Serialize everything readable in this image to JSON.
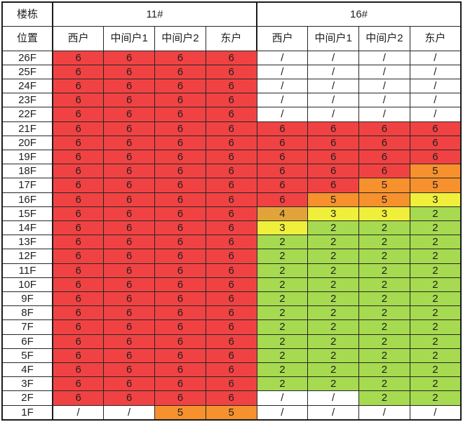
{
  "chart_data": {
    "type": "heatmap",
    "corner_labels": [
      "楼栋",
      "位置"
    ],
    "column_groups": [
      {
        "name": "11#",
        "columns": [
          "西户",
          "中间户1",
          "中间户2",
          "东户"
        ]
      },
      {
        "name": "16#",
        "columns": [
          "西户",
          "中间户1",
          "中间户2",
          "东户"
        ]
      }
    ],
    "floors": [
      "26F",
      "25F",
      "24F",
      "23F",
      "22F",
      "21F",
      "20F",
      "19F",
      "18F",
      "17F",
      "16F",
      "15F",
      "14F",
      "13F",
      "12F",
      "11F",
      "10F",
      "9F",
      "8F",
      "7F",
      "6F",
      "5F",
      "4F",
      "3F",
      "2F",
      "1F"
    ],
    "values_11": [
      [
        "6",
        "6",
        "6",
        "6"
      ],
      [
        "6",
        "6",
        "6",
        "6"
      ],
      [
        "6",
        "6",
        "6",
        "6"
      ],
      [
        "6",
        "6",
        "6",
        "6"
      ],
      [
        "6",
        "6",
        "6",
        "6"
      ],
      [
        "6",
        "6",
        "6",
        "6"
      ],
      [
        "6",
        "6",
        "6",
        "6"
      ],
      [
        "6",
        "6",
        "6",
        "6"
      ],
      [
        "6",
        "6",
        "6",
        "6"
      ],
      [
        "6",
        "6",
        "6",
        "6"
      ],
      [
        "6",
        "6",
        "6",
        "6"
      ],
      [
        "6",
        "6",
        "6",
        "6"
      ],
      [
        "6",
        "6",
        "6",
        "6"
      ],
      [
        "6",
        "6",
        "6",
        "6"
      ],
      [
        "6",
        "6",
        "6",
        "6"
      ],
      [
        "6",
        "6",
        "6",
        "6"
      ],
      [
        "6",
        "6",
        "6",
        "6"
      ],
      [
        "6",
        "6",
        "6",
        "6"
      ],
      [
        "6",
        "6",
        "6",
        "6"
      ],
      [
        "6",
        "6",
        "6",
        "6"
      ],
      [
        "6",
        "6",
        "6",
        "6"
      ],
      [
        "6",
        "6",
        "6",
        "6"
      ],
      [
        "6",
        "6",
        "6",
        "6"
      ],
      [
        "6",
        "6",
        "6",
        "6"
      ],
      [
        "6",
        "6",
        "6",
        "6"
      ],
      [
        "/",
        "/",
        "5",
        "5"
      ]
    ],
    "values_16": [
      [
        "/",
        "/",
        "/",
        "/"
      ],
      [
        "/",
        "/",
        "/",
        "/"
      ],
      [
        "/",
        "/",
        "/",
        "/"
      ],
      [
        "/",
        "/",
        "/",
        "/"
      ],
      [
        "/",
        "/",
        "/",
        "/"
      ],
      [
        "6",
        "6",
        "6",
        "6"
      ],
      [
        "6",
        "6",
        "6",
        "6"
      ],
      [
        "6",
        "6",
        "6",
        "6"
      ],
      [
        "6",
        "6",
        "6",
        "5"
      ],
      [
        "6",
        "6",
        "5",
        "5"
      ],
      [
        "6",
        "5",
        "5",
        "3"
      ],
      [
        "4",
        "3",
        "3",
        "2"
      ],
      [
        "3",
        "2",
        "2",
        "2"
      ],
      [
        "2",
        "2",
        "2",
        "2"
      ],
      [
        "2",
        "2",
        "2",
        "2"
      ],
      [
        "2",
        "2",
        "2",
        "2"
      ],
      [
        "2",
        "2",
        "2",
        "2"
      ],
      [
        "2",
        "2",
        "2",
        "2"
      ],
      [
        "2",
        "2",
        "2",
        "2"
      ],
      [
        "2",
        "2",
        "2",
        "2"
      ],
      [
        "2",
        "2",
        "2",
        "2"
      ],
      [
        "2",
        "2",
        "2",
        "2"
      ],
      [
        "2",
        "2",
        "2",
        "2"
      ],
      [
        "2",
        "2",
        "2",
        "2"
      ],
      [
        "/",
        "/",
        "2",
        "2"
      ],
      [
        "/",
        "/",
        "/",
        "/"
      ]
    ],
    "color_scale": {
      "6": "#F14243",
      "5": "#F6912E",
      "4": "#E2A33B",
      "3": "#EFEF3C",
      "2": "#A6DA50",
      "/": "#FFFFFF"
    },
    "no_data_symbol": "/"
  }
}
